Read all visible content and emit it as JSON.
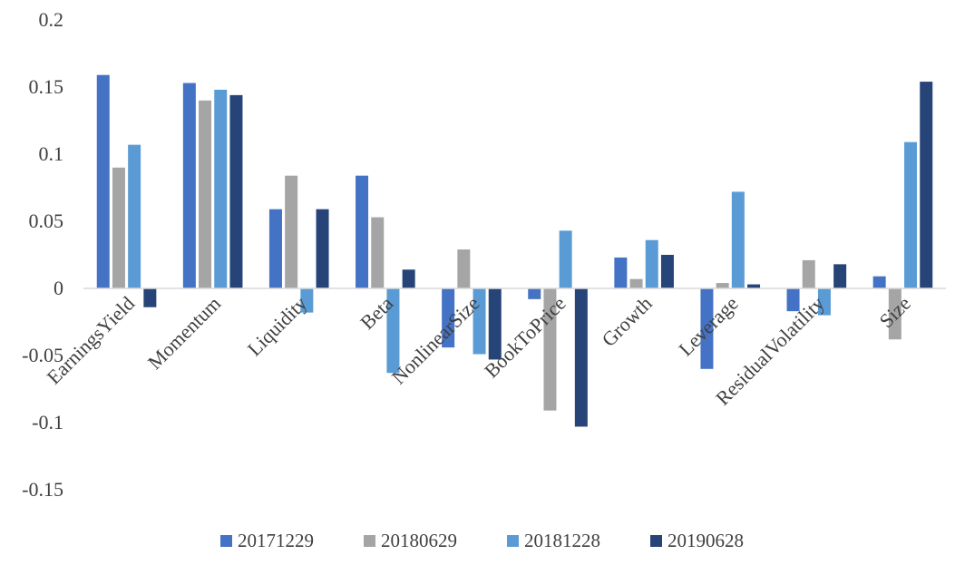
{
  "chart_data": {
    "type": "bar",
    "title": "",
    "xlabel": "",
    "ylabel": "",
    "ylim": [
      -0.15,
      0.2
    ],
    "yticks": [
      -0.15,
      -0.1,
      -0.05,
      0,
      0.05,
      0.1,
      0.15,
      0.2
    ],
    "ytick_labels": [
      "-0.15",
      "-0.1",
      "-0.05",
      "0",
      "0.05",
      "0.1",
      "0.15",
      "0.2"
    ],
    "grid": false,
    "legend_position": "bottom",
    "categories": [
      "EarningsYield",
      "Momentum",
      "Liquidity",
      "Beta",
      "NonlinearSize",
      "BookToPrice",
      "Growth",
      "Leverage",
      "ResidualVolatility",
      "Size"
    ],
    "series": [
      {
        "name": "20171229",
        "color": "#4472C4",
        "values": [
          0.159,
          0.153,
          0.059,
          0.084,
          -0.044,
          -0.008,
          0.023,
          -0.06,
          -0.017,
          0.009
        ]
      },
      {
        "name": "20180629",
        "color": "#A5A5A5",
        "values": [
          0.09,
          0.14,
          0.084,
          0.053,
          0.029,
          -0.091,
          0.007,
          0.004,
          0.021,
          -0.038
        ]
      },
      {
        "name": "20181228",
        "color": "#5B9BD5",
        "values": [
          0.107,
          0.148,
          -0.018,
          -0.063,
          -0.049,
          0.043,
          0.036,
          0.072,
          -0.02,
          0.109
        ]
      },
      {
        "name": "20190628",
        "color": "#264478",
        "values": [
          -0.014,
          0.144,
          0.059,
          0.014,
          -0.053,
          -0.103,
          0.025,
          0.003,
          0.018,
          0.154
        ]
      }
    ]
  }
}
